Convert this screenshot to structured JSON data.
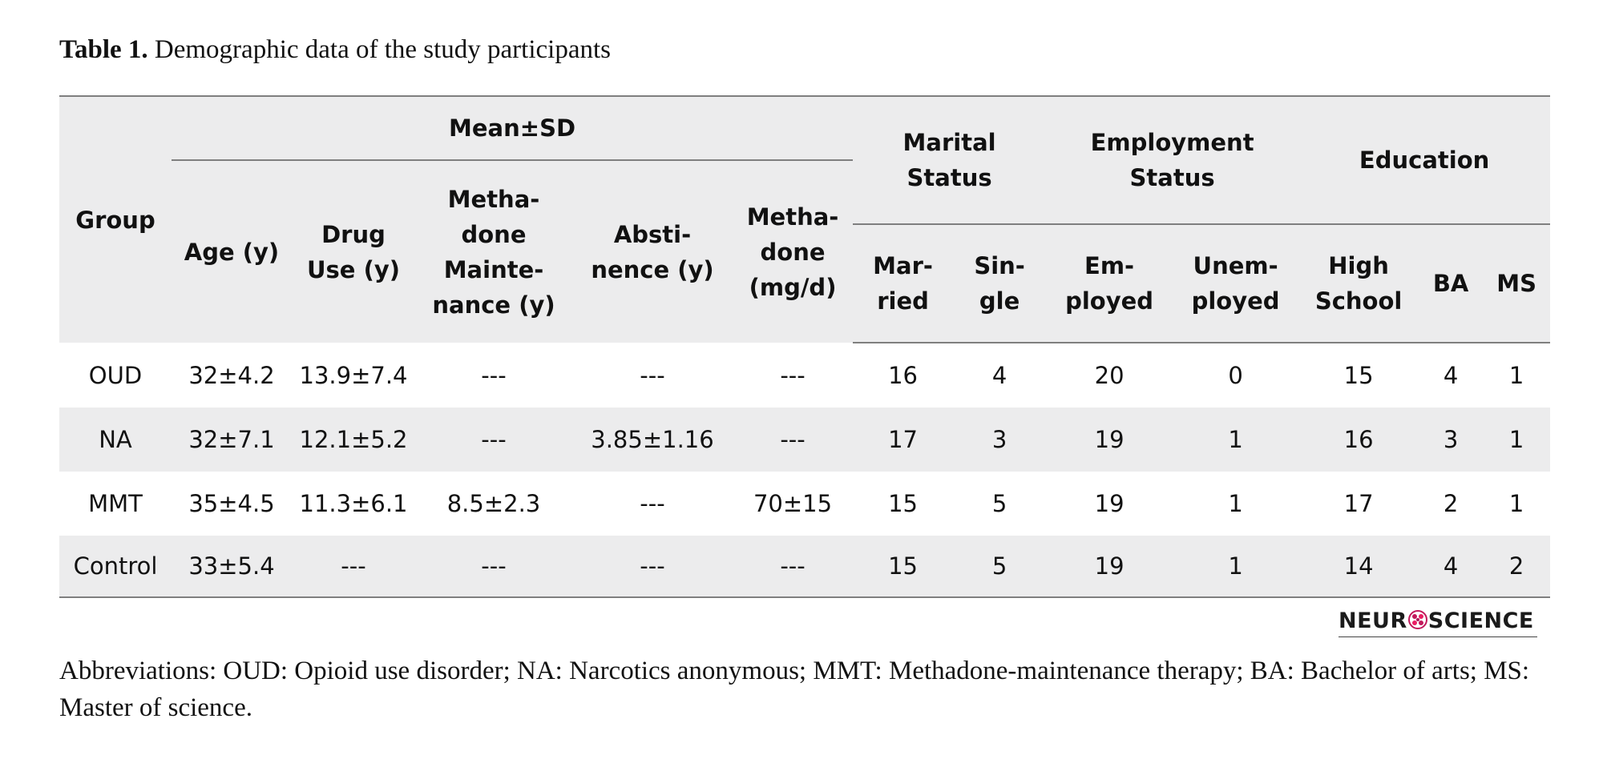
{
  "caption": {
    "label": "Table 1.",
    "text": " Demographic data of the study participants"
  },
  "headers": {
    "group": "Group",
    "mean_sd": "Mean±SD",
    "marital": [
      "Marital",
      "Status"
    ],
    "employment": [
      "Employment",
      "Status"
    ],
    "education": "Education",
    "age": "Age (y)",
    "drug_use": [
      "Drug",
      "Use (y)"
    ],
    "mmt_years": [
      "Metha-",
      "done",
      "Mainte-",
      "nance (y)"
    ],
    "abstinence": [
      "Absti-",
      "nence (y)"
    ],
    "methadone_dose": [
      "Metha-",
      "done",
      "(mg/d)"
    ],
    "married": [
      "Mar-",
      "ried"
    ],
    "single": [
      "Sin-",
      "gle"
    ],
    "employed": [
      "Em-",
      "ployed"
    ],
    "unemployed": [
      "Unem-",
      "ployed"
    ],
    "high_school": [
      "High",
      "School"
    ],
    "ba": "BA",
    "ms": "MS"
  },
  "rows": [
    {
      "group": "OUD",
      "cells": [
        "32±4.2",
        "13.9±7.4",
        "---",
        "---",
        "---",
        "16",
        "4",
        "20",
        "0",
        "15",
        "4",
        "1"
      ]
    },
    {
      "group": "NA",
      "cells": [
        "32±7.1",
        "12.1±5.2",
        "---",
        "3.85±1.16",
        "---",
        "17",
        "3",
        "19",
        "1",
        "16",
        "3",
        "1"
      ]
    },
    {
      "group": "MMT",
      "cells": [
        "35±4.5",
        "11.3±6.1",
        "8.5±2.3",
        "---",
        "70±15",
        "15",
        "5",
        "19",
        "1",
        "17",
        "2",
        "1"
      ]
    },
    {
      "group": "Control",
      "cells": [
        "33±5.4",
        "---",
        "---",
        "---",
        "---",
        "15",
        "5",
        "19",
        "1",
        "14",
        "4",
        "2"
      ]
    }
  ],
  "logo": {
    "pre": "NEUR",
    "post": "SCIENCE",
    "icon": "brain-icon"
  },
  "footnote": "Abbreviations: OUD: Opioid use disorder; NA: Narcotics anonymous; MMT: Methadone-maintenance therapy; BA: Bachelor of arts; MS: Master of science."
}
